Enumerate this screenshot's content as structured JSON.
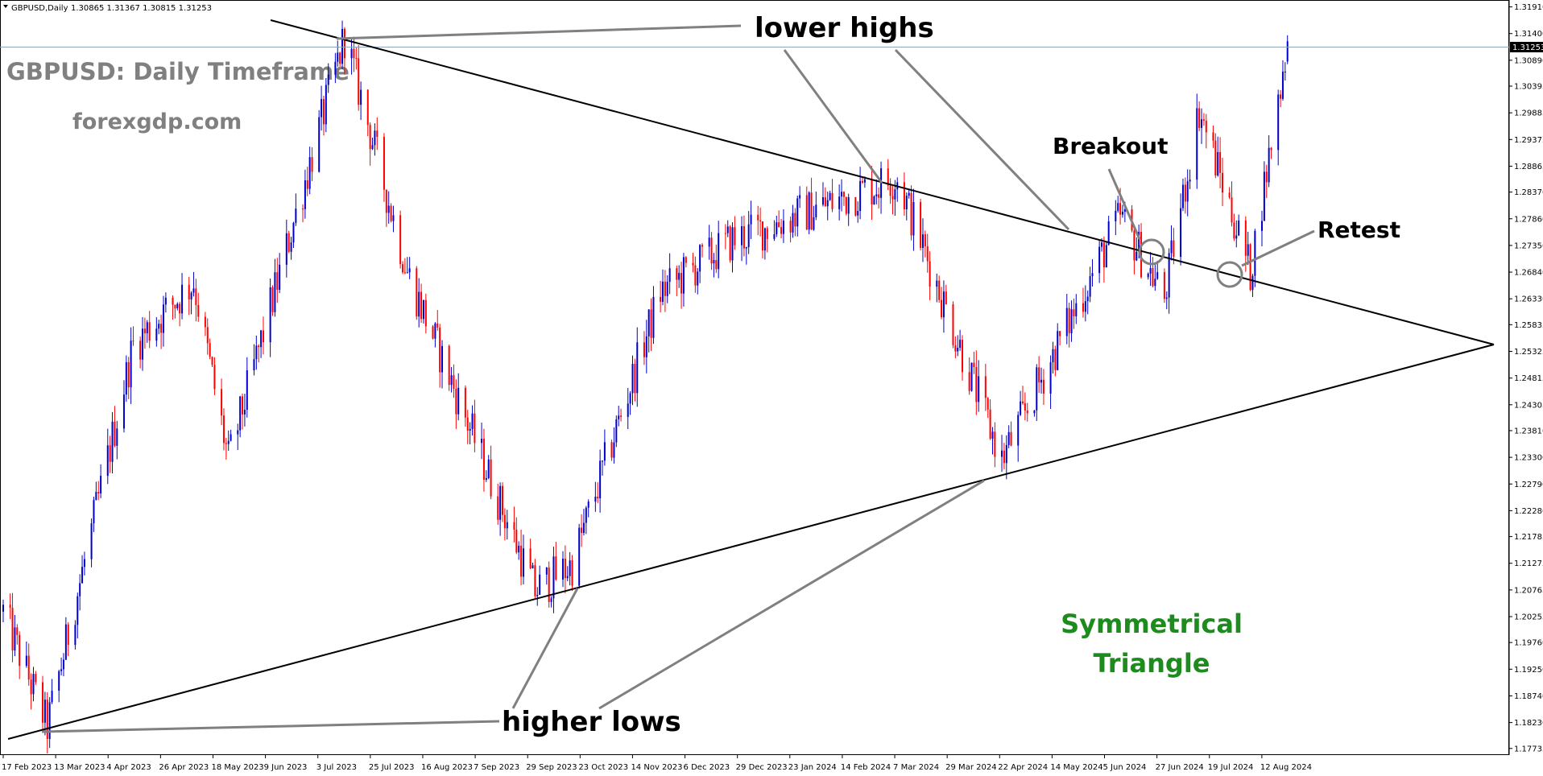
{
  "header": {
    "symbol": "GBPUSD,Daily",
    "ohlc": "1.30865 1.31367 1.30815 1.31253"
  },
  "title": "GBPUSD: Daily Timeframe",
  "site": "forexgdp.com",
  "annotations": {
    "lower_highs": "lower highs",
    "higher_lows": "higher lows",
    "breakout": "Breakout",
    "retest": "Retest",
    "pattern_line1": "Symmetrical",
    "pattern_line2": "Triangle"
  },
  "current_price": "1.31253",
  "colors": {
    "bull": "#0000cd",
    "bear": "#ff0000",
    "trendline": "#000000",
    "pointer": "#808080",
    "pattern_text": "#1e8b1e",
    "title_text": "#808080",
    "price_line": "#8fa3bf",
    "price_label_bg": "#000000"
  },
  "chart_data": {
    "type": "candlestick",
    "title": "GBPUSD: Daily Timeframe",
    "x_tick_labels": [
      "17 Feb 2023",
      "13 Mar 2023",
      "4 Apr 2023",
      "26 Apr 2023",
      "18 May 2023",
      "9 Jun 2023",
      "3 Jul 2023",
      "25 Jul 2023",
      "16 Aug 2023",
      "7 Sep 2023",
      "29 Sep 2023",
      "23 Oct 2023",
      "14 Nov 2023",
      "6 Dec 2023",
      "29 Dec 2023",
      "23 Jan 2024",
      "14 Feb 2024",
      "7 Mar 2024",
      "29 Mar 2024",
      "22 Apr 2024",
      "14 May 2024",
      "5 Jun 2024",
      "27 Jun 2024",
      "19 Jul 2024",
      "12 Aug 2024"
    ],
    "y_tick_labels": [
      "1.31910",
      "1.31400",
      "1.30890",
      "1.30395",
      "1.29885",
      "1.29375",
      "1.28865",
      "1.28370",
      "1.27860",
      "1.27350",
      "1.26840",
      "1.26330",
      "1.25835",
      "1.25325",
      "1.24815",
      "1.24305",
      "1.23810",
      "1.23300",
      "1.22790",
      "1.22280",
      "1.21785",
      "1.21275",
      "1.20765",
      "1.20255",
      "1.19760",
      "1.19250",
      "1.18740",
      "1.18230",
      "1.17735"
    ],
    "ylim": [
      1.1767,
      1.3198
    ],
    "price_path": [
      {
        "date": "2023-02-17",
        "close": 1.2035
      },
      {
        "date": "2023-03-08",
        "close": 1.1815
      },
      {
        "date": "2023-04-14",
        "close": 1.2545
      },
      {
        "date": "2023-05-10",
        "close": 1.2665
      },
      {
        "date": "2023-05-25",
        "close": 1.2325
      },
      {
        "date": "2023-07-14",
        "close": 1.3135
      },
      {
        "date": "2023-08-10",
        "close": 1.2685
      },
      {
        "date": "2023-10-04",
        "close": 1.2075
      },
      {
        "date": "2023-10-20",
        "close": 1.2125
      },
      {
        "date": "2023-11-27",
        "close": 1.2645
      },
      {
        "date": "2023-12-28",
        "close": 1.2745
      },
      {
        "date": "2024-03-08",
        "close": 1.2865
      },
      {
        "date": "2024-04-22",
        "close": 1.2325
      },
      {
        "date": "2024-06-12",
        "close": 1.279
      },
      {
        "date": "2024-07-01",
        "close": 1.2635
      },
      {
        "date": "2024-07-16",
        "close": 1.2995
      },
      {
        "date": "2024-08-07",
        "close": 1.2685
      },
      {
        "date": "2024-08-23",
        "close": 1.3125
      }
    ],
    "trendlines": [
      {
        "name": "upper trendline",
        "from": {
          "date": "2023-06-05",
          "price": 1.3184
        },
        "to": {
          "date": "2024-10-28",
          "price": 1.2552
        }
      },
      {
        "name": "lower trendline",
        "from": {
          "date": "2023-02-17",
          "price": 1.1783
        },
        "to": {
          "date": "2024-10-28",
          "price": 1.2552
        }
      }
    ],
    "last": {
      "open": 1.30865,
      "high": 1.31367,
      "low": 1.30815,
      "close": 1.31253
    }
  }
}
